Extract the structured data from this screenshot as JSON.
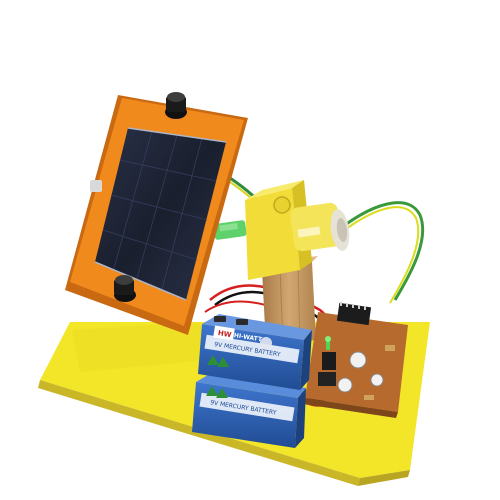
{
  "photo": {
    "battery_top": {
      "brand": "HI-WATT",
      "logo": "HW",
      "text": "9V MERCURY BATTERY"
    },
    "battery_bottom": {
      "text": "9V MERCURY BATTERY"
    },
    "colors": {
      "base_board": "#f3e629",
      "panel_frame": "#f08a1c",
      "solar_cell": "#1d2233",
      "motor_housing": "#f2dd38",
      "battery_body": "#2c62b8",
      "pcb": "#b76a2e",
      "wood_post": "#c99a62"
    }
  }
}
